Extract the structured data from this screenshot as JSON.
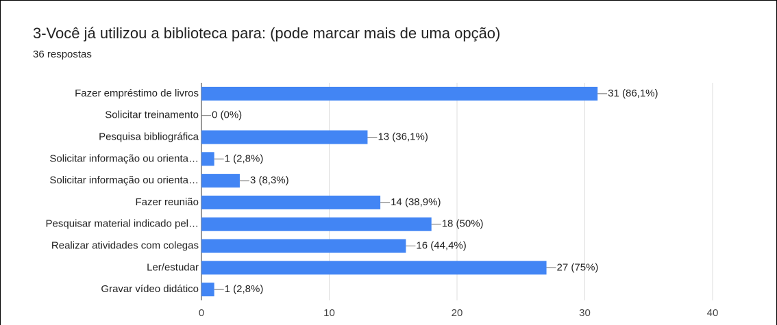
{
  "chart_data": {
    "type": "bar",
    "orientation": "horizontal",
    "title": "3-Você já utilizou a biblioteca para:  (pode marcar mais de uma opção)",
    "subtitle": "36 respostas",
    "categories": [
      "Fazer empréstimo de livros",
      "Solicitar treinamento",
      "Pesquisa bibliográfica",
      "Solicitar informação ou orienta…",
      "Solicitar informação ou orienta…",
      "Fazer reunião",
      "Pesquisar material indicado pel…",
      "Realizar atividades com colegas",
      "Ler/estudar",
      "Gravar vídeo didático"
    ],
    "values": [
      31,
      0,
      13,
      1,
      3,
      14,
      18,
      16,
      27,
      1
    ],
    "value_labels": [
      "31 (86,1%)",
      "0 (0%)",
      "13 (36,1%)",
      "1 (2,8%)",
      "3 (8,3%)",
      "14 (38,9%)",
      "18 (50%)",
      "16 (44,4%)",
      "27 (75%)",
      "1 (2,8%)"
    ],
    "color": "#4285f4",
    "xlim": [
      0,
      40
    ],
    "xticks": [
      0,
      10,
      20,
      30,
      40
    ],
    "grid": true
  }
}
